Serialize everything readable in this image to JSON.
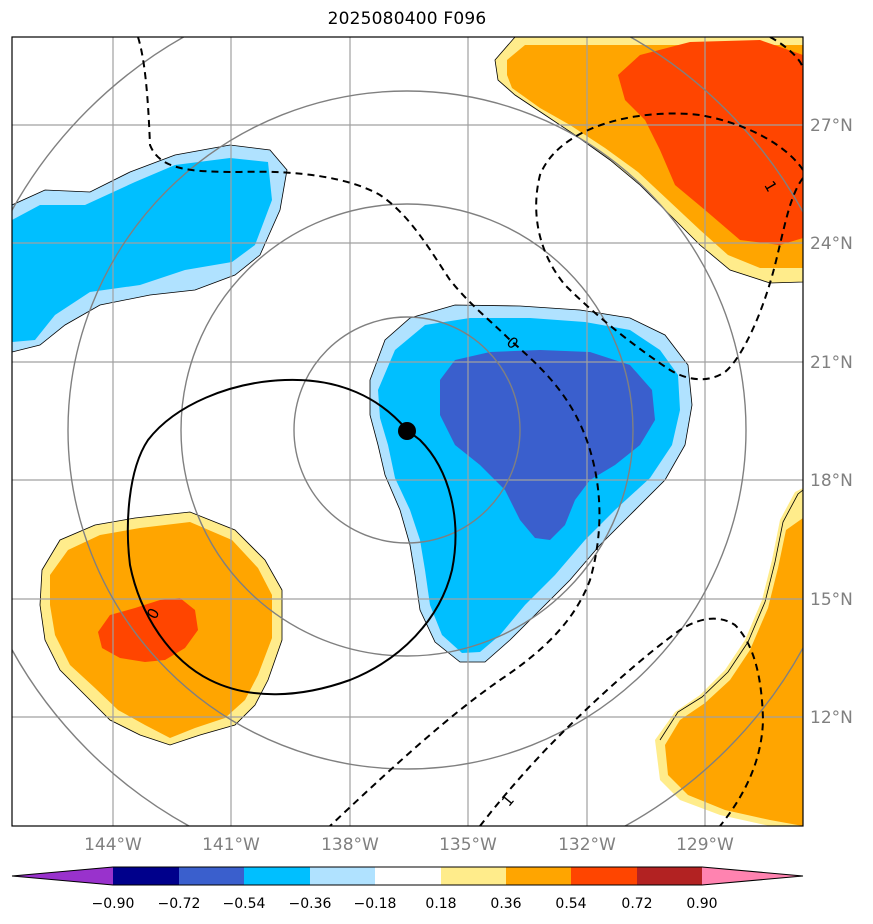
{
  "title": "2025080400 F096",
  "map": {
    "lat_labels": [
      "27°N",
      "24°N",
      "21°N",
      "18°N",
      "15°N",
      "12°N"
    ],
    "lon_labels": [
      "144°W",
      "141°W",
      "138°W",
      "135°W",
      "132°W",
      "129°W"
    ],
    "contour_labels": {
      "zero_top": "0",
      "zero_left": "0",
      "one_right": "1",
      "one_bottom": "1"
    },
    "storm_center": {
      "lat": 19.2,
      "lon": -136.5
    }
  },
  "colorbar": {
    "ticks": [
      "−0.90",
      "−0.72",
      "−0.54",
      "−0.36",
      "−0.18",
      "0.18",
      "0.36",
      "0.54",
      "0.72",
      "0.90"
    ],
    "colors": [
      "#9932cc",
      "#00008b",
      "#3a5fcd",
      "#00bfff",
      "#b0e2ff",
      "#ffffff",
      "#ffec8b",
      "#ffa500",
      "#ff4500",
      "#b22222",
      "#ff83b0"
    ]
  },
  "colors": {
    "grid": "#a0a0a0",
    "range_rings": "#808080",
    "light_blue": "#b0e2ff",
    "cyan": "#00bfff",
    "royal_blue": "#3a5fcd",
    "light_yellow": "#ffec8b",
    "orange": "#ffa500",
    "red_orange": "#ff4500"
  }
}
